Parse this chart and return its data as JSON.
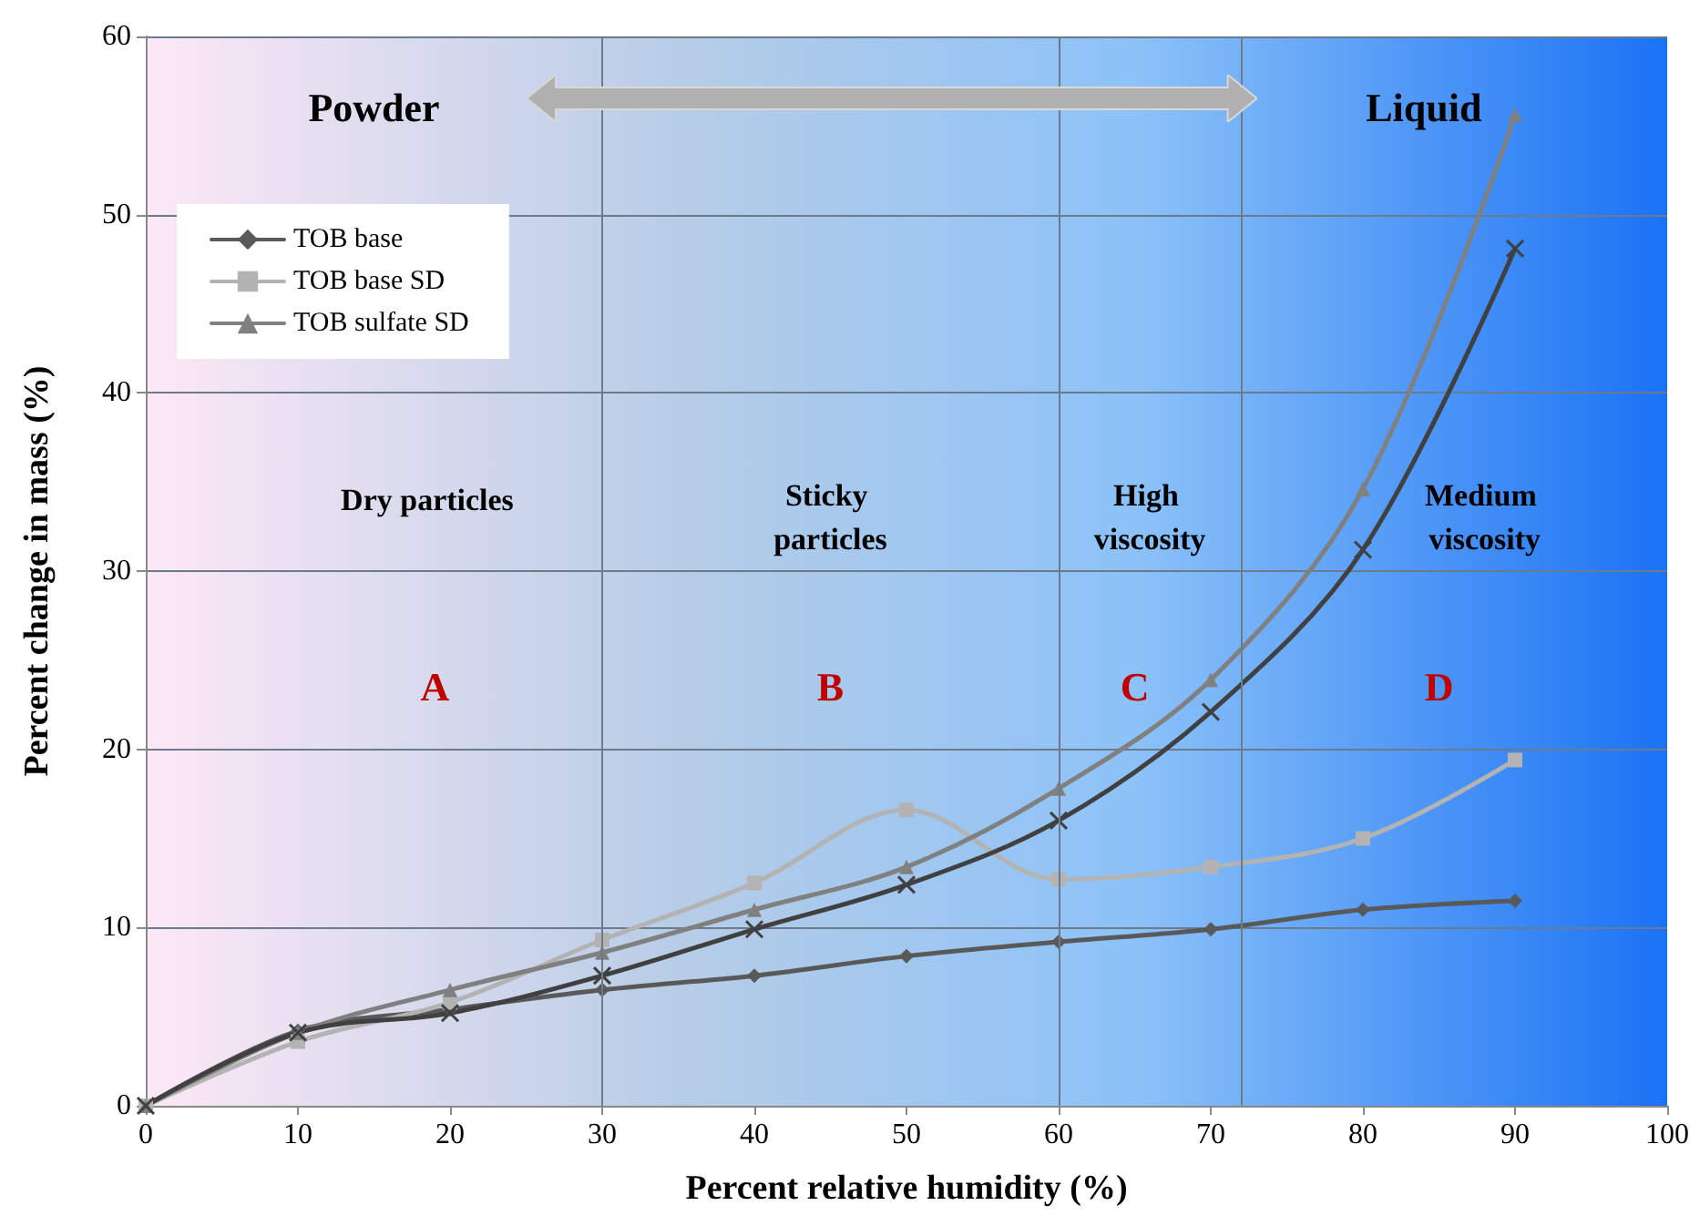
{
  "chart_data": {
    "type": "line",
    "xlabel": "Percent relative humidity (%)",
    "ylabel": "Percent change in mass (%)",
    "xlim": [
      0,
      100
    ],
    "xticks": [
      0,
      10,
      20,
      30,
      40,
      50,
      60,
      70,
      80,
      90,
      100
    ],
    "ylim": [
      0,
      60
    ],
    "yticks": [
      0,
      10,
      20,
      30,
      40,
      50,
      60
    ],
    "grid": "y",
    "legend": "top left",
    "line_style": "solid",
    "x": [
      0,
      10,
      20,
      30,
      40,
      50,
      60,
      70,
      80,
      90
    ],
    "series": [
      {
        "name": "TOB base",
        "color": "#595959",
        "marker": "diamond",
        "values": [
          0,
          4.2,
          5.4,
          6.5,
          7.3,
          8.4,
          9.2,
          9.9,
          11,
          11.5
        ]
      },
      {
        "name": "TOB base SD",
        "color": "#b3b3b3",
        "marker": "square",
        "values": [
          0,
          3.6,
          5.8,
          9.3,
          12.5,
          16.6,
          12.7,
          13.4,
          15,
          19.4
        ]
      },
      {
        "name": "TOB sulfate SD",
        "color": "#808080",
        "marker": "triangle",
        "values": [
          0,
          4.1,
          6.5,
          8.6,
          11,
          13.4,
          17.8,
          23.9,
          34.6,
          55.6
        ]
      },
      {
        "color": "#404040",
        "marker": "cross",
        "values": [
          0,
          4.1,
          5.2,
          7.3,
          9.9,
          12.4,
          16,
          22.1,
          31.2,
          48.1
        ]
      }
    ],
    "ref_lines": [
      {
        "axis": "x",
        "value": 30,
        "color": "#6b7b8c"
      },
      {
        "axis": "x",
        "value": 60,
        "color": "#6b7b8c"
      },
      {
        "axis": "x",
        "value": 72,
        "color": "#6b7b8c"
      }
    ],
    "annotations": [
      "Powder",
      "Liquid",
      "Dry particles",
      "Sticky particles",
      "High viscosity",
      "Medium viscosity",
      "A",
      "B",
      "C",
      "D"
    ]
  }
}
